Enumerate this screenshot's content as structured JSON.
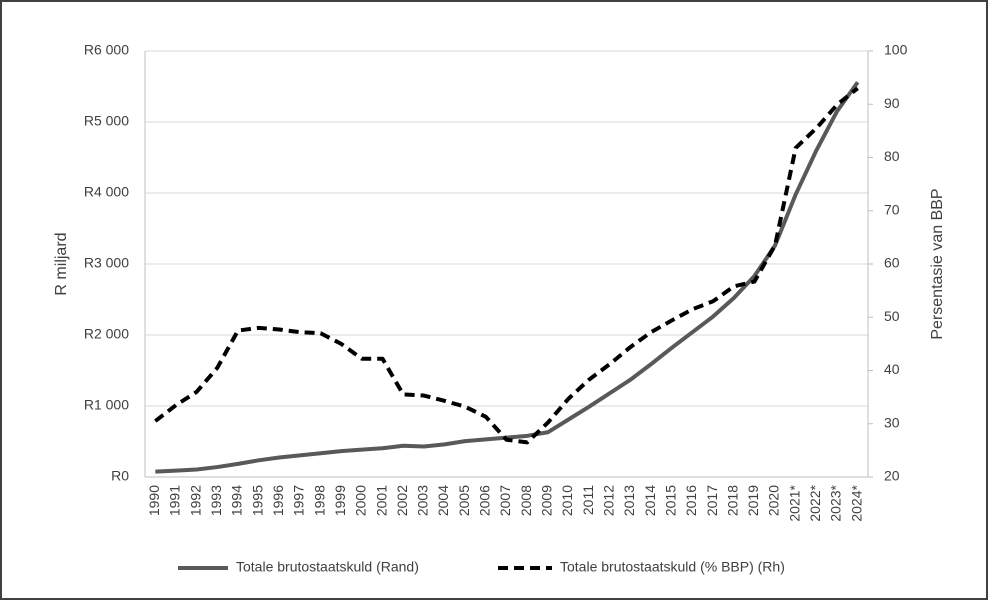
{
  "chart_data": {
    "type": "line",
    "categories": [
      "1990",
      "1991",
      "1992",
      "1993",
      "1994",
      "1995",
      "1996",
      "1997",
      "1998",
      "1999",
      "2000",
      "2001",
      "2002",
      "2003",
      "2004",
      "2005",
      "2006",
      "2007",
      "2008",
      "2009",
      "2010",
      "2011",
      "2012",
      "2013",
      "2014",
      "2015",
      "2016",
      "2017",
      "2018",
      "2019",
      "2020",
      "2021*",
      "2022*",
      "2023*",
      "2024*"
    ],
    "y_label": "R miljard",
    "y2_label": "Persentasie van BBP",
    "ylim": [
      0,
      6000
    ],
    "yticks": [
      {
        "value": 0,
        "label": "R0"
      },
      {
        "value": 1000,
        "label": "R1 000"
      },
      {
        "value": 2000,
        "label": "R2 000"
      },
      {
        "value": 3000,
        "label": "R3 000"
      },
      {
        "value": 4000,
        "label": "R4 000"
      },
      {
        "value": 5000,
        "label": "R5 000"
      },
      {
        "value": 6000,
        "label": "R6 000"
      }
    ],
    "y2lim": [
      20,
      100
    ],
    "y2ticks": [
      20,
      30,
      40,
      50,
      60,
      70,
      80,
      90,
      100
    ],
    "grid": true,
    "legend": "bottom",
    "series": [
      {
        "name": "Totale brutostaatskuld (Rand)",
        "color": "#595959",
        "style": "solid",
        "values": [
          75,
          90,
          105,
          140,
          185,
          235,
          275,
          305,
          335,
          365,
          385,
          405,
          440,
          430,
          460,
          505,
          530,
          555,
          580,
          630,
          810,
          990,
          1180,
          1370,
          1590,
          1820,
          2040,
          2260,
          2520,
          2830,
          3260,
          3980,
          4600,
          5150,
          5560
        ]
      },
      {
        "name": "Totale brutostaatskuld (% BBP) (Rh)",
        "color": "#000000",
        "style": "dashed",
        "axis": "y2",
        "values": [
          30.5,
          33.5,
          36,
          40.5,
          47.5,
          48,
          47.7,
          47.2,
          47,
          45,
          42.2,
          42.2,
          35.5,
          35.3,
          34.3,
          33.2,
          31.3,
          27,
          26.5,
          30.2,
          34.7,
          38.3,
          41.2,
          44.4,
          47.2,
          49.4,
          51.5,
          53,
          55.8,
          56.7,
          63.5,
          81.8,
          85.5,
          89.9,
          93
        ]
      }
    ]
  }
}
